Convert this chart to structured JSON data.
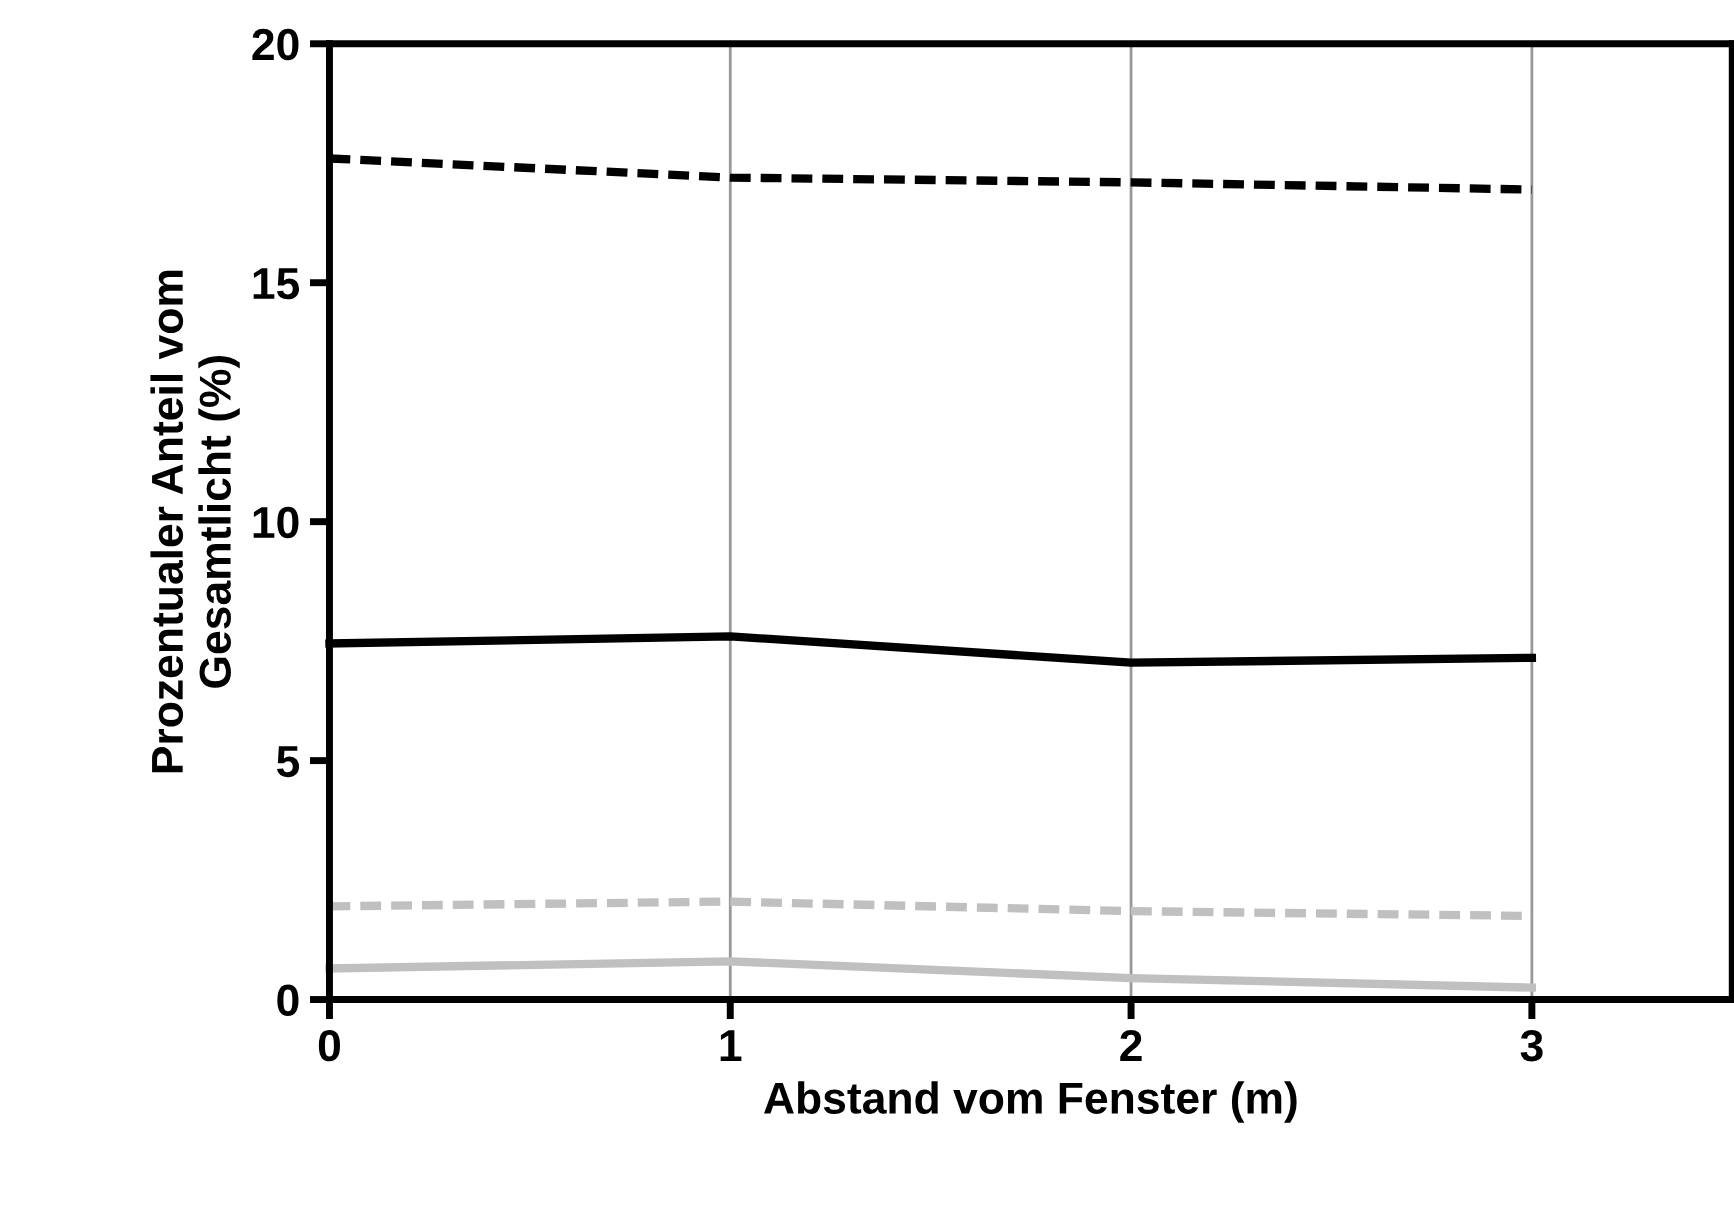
{
  "chart_data": {
    "type": "line",
    "xlabel": "Abstand vom Fenster (m)",
    "ylabel": "Prozentualer Anteil vom\nGesamtlicht (%)",
    "x": [
      0,
      1,
      2,
      3
    ],
    "series": [
      {
        "color": "#000000",
        "line_style": "dashed",
        "values": [
          17.6,
          17.2,
          17.1,
          16.95
        ]
      },
      {
        "color": "#000000",
        "line_style": "solid",
        "values": [
          7.45,
          7.6,
          7.05,
          7.15
        ]
      },
      {
        "color": "#c0c0c0",
        "line_style": "dashed",
        "values": [
          1.95,
          2.05,
          1.85,
          1.75
        ]
      },
      {
        "color": "#c0c0c0",
        "line_style": "solid",
        "values": [
          0.65,
          0.8,
          0.45,
          0.25
        ]
      }
    ],
    "xlim": [
      0,
      3.5
    ],
    "xticks": [
      0,
      1,
      2,
      3
    ],
    "ylim": [
      0,
      20
    ],
    "yticks": [
      0,
      5,
      10,
      15,
      20
    ],
    "grid": "x",
    "marker": "none",
    "legend": false
  }
}
